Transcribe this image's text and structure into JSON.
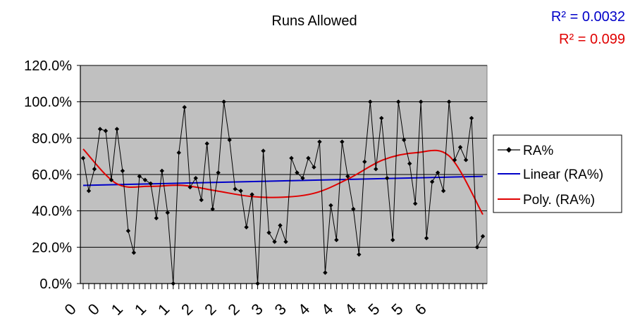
{
  "chart_data": {
    "type": "line",
    "title": "Runs Allowed",
    "annotations": [
      {
        "text": "R² = 0.0032",
        "color": "#0000c8"
      },
      {
        "text": "R² = 0.099",
        "color": "#e00000"
      }
    ],
    "ylim": [
      0,
      120
    ],
    "yticks": [
      "0.0%",
      "20.0%",
      "40.0%",
      "60.0%",
      "80.0%",
      "100.0%",
      "120.0%"
    ],
    "xtick_labels": [
      "0",
      "0",
      "1",
      "1",
      "1",
      "2",
      "2",
      "2",
      "3",
      "3",
      "4",
      "4",
      "4",
      "5",
      "5",
      "6"
    ],
    "grid": true,
    "legend": "right",
    "series": [
      {
        "name": "RA%",
        "color": "#000000",
        "values": [
          69,
          51,
          63,
          85,
          84,
          57,
          85,
          62,
          29,
          17,
          59,
          57,
          55,
          36,
          62,
          39,
          0,
          72,
          97,
          53,
          58,
          46,
          77,
          41,
          61,
          100,
          79,
          52,
          51,
          31,
          49,
          0,
          73,
          28,
          23,
          32,
          23,
          69,
          61,
          58,
          69,
          64,
          78,
          6,
          43,
          24,
          78,
          59,
          41,
          16,
          67,
          100,
          63,
          91,
          58,
          24,
          100,
          79,
          66,
          44,
          100,
          25,
          56,
          61,
          51,
          100,
          68,
          75,
          68,
          91,
          20,
          26
        ]
      },
      {
        "name": "Linear (RA%)",
        "color": "#0000c8",
        "values": [
          54,
          59
        ]
      },
      {
        "name": "Poly. (RA%)",
        "color": "#e00000",
        "values": [
          74,
          55,
          53.5,
          54,
          51,
          48,
          47.5,
          50,
          58,
          68,
          72,
          70,
          38
        ]
      }
    ]
  }
}
